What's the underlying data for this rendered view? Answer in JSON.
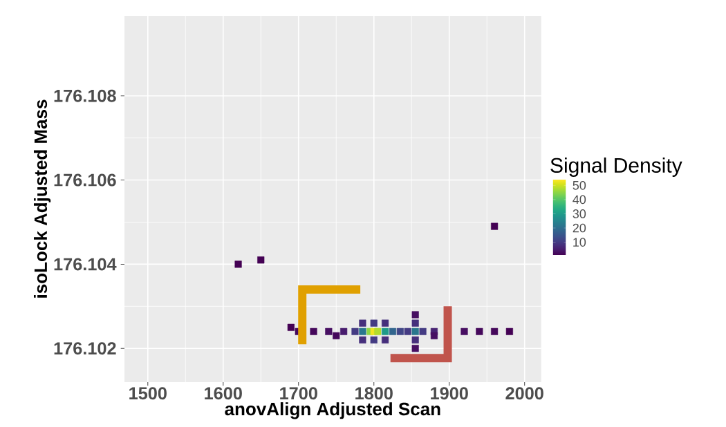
{
  "chart_data": {
    "type": "scatter",
    "xlabel": "anovAlign Adjusted Scan",
    "ylabel": "isoLock Adjusted Mass",
    "clabel": "Signal Density",
    "x": [
      1700,
      1720,
      1740,
      1760,
      1775,
      1785,
      1795,
      1800,
      1805,
      1815,
      1825,
      1835,
      1845,
      1855,
      1865,
      1880,
      1920,
      1940,
      1960,
      1980,
      1785,
      1800,
      1815,
      1785,
      1800,
      1815,
      1855,
      1855,
      1855,
      1855,
      1650,
      1620,
      1960,
      1690,
      1750,
      1880
    ],
    "values": [
      176.1024,
      176.1024,
      176.1024,
      176.1024,
      176.1024,
      176.1024,
      176.1024,
      176.1024,
      176.1024,
      176.1024,
      176.1024,
      176.1024,
      176.1024,
      176.1024,
      176.1024,
      176.1024,
      176.1024,
      176.1024,
      176.1024,
      176.1024,
      176.1026,
      176.1026,
      176.1026,
      176.1022,
      176.1022,
      176.1022,
      176.1026,
      176.1022,
      176.1028,
      176.102,
      176.1041,
      176.104,
      176.1049,
      176.1025,
      176.1023,
      176.1023
    ],
    "cvalues": [
      2,
      2,
      3,
      5,
      10,
      22,
      45,
      53,
      48,
      30,
      18,
      12,
      10,
      22,
      10,
      6,
      3,
      2,
      2,
      1,
      8,
      10,
      8,
      8,
      10,
      8,
      8,
      8,
      3,
      3,
      1,
      1,
      1,
      1,
      2,
      3
    ],
    "marker": "square",
    "xlim": [
      1469,
      2022
    ],
    "ylim": [
      176.1012,
      176.1099
    ],
    "xticks": [
      1500,
      1600,
      1700,
      1800,
      1900,
      2000
    ],
    "yticks": [
      176.102,
      176.104,
      176.106,
      176.108
    ],
    "clim": [
      1,
      54
    ],
    "cticks": [
      10,
      20,
      30,
      40,
      50
    ],
    "grid": true
  }
}
